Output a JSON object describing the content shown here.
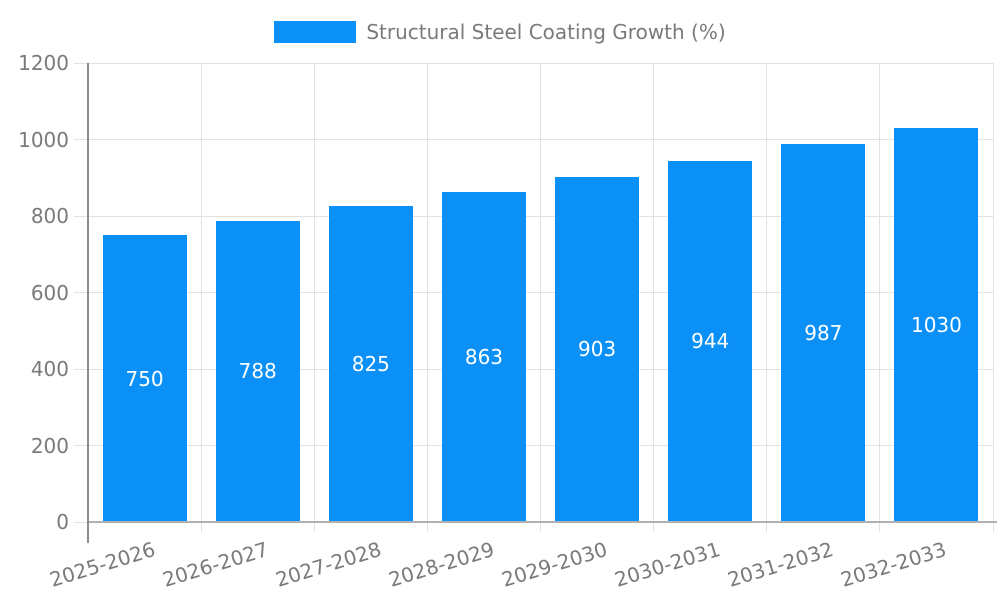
{
  "chart_data": {
    "type": "bar",
    "title": "",
    "legend_label": "Structural Steel Coating Growth (%)",
    "legend_position": "top-center",
    "categories": [
      "2025-2026",
      "2026-2027",
      "2027-2028",
      "2028-2029",
      "2029-2030",
      "2030-2031",
      "2031-2032",
      "2032-2033"
    ],
    "values": [
      750,
      788,
      825,
      863,
      903,
      944,
      987,
      1030
    ],
    "y_ticks": [
      0,
      200,
      400,
      600,
      800,
      1000,
      1200
    ],
    "ylim": [
      0,
      1200
    ],
    "grid": "on",
    "x_label_rotation_deg": -17,
    "bar_color": "#0a90f6",
    "bar_label_color": "#ffffff",
    "axis_text_color": "#7a7a7a",
    "axis_line_color": "#8c8c8c",
    "baseline_color": "#b0b0b0",
    "gridline_color": "#e2e2e2"
  }
}
